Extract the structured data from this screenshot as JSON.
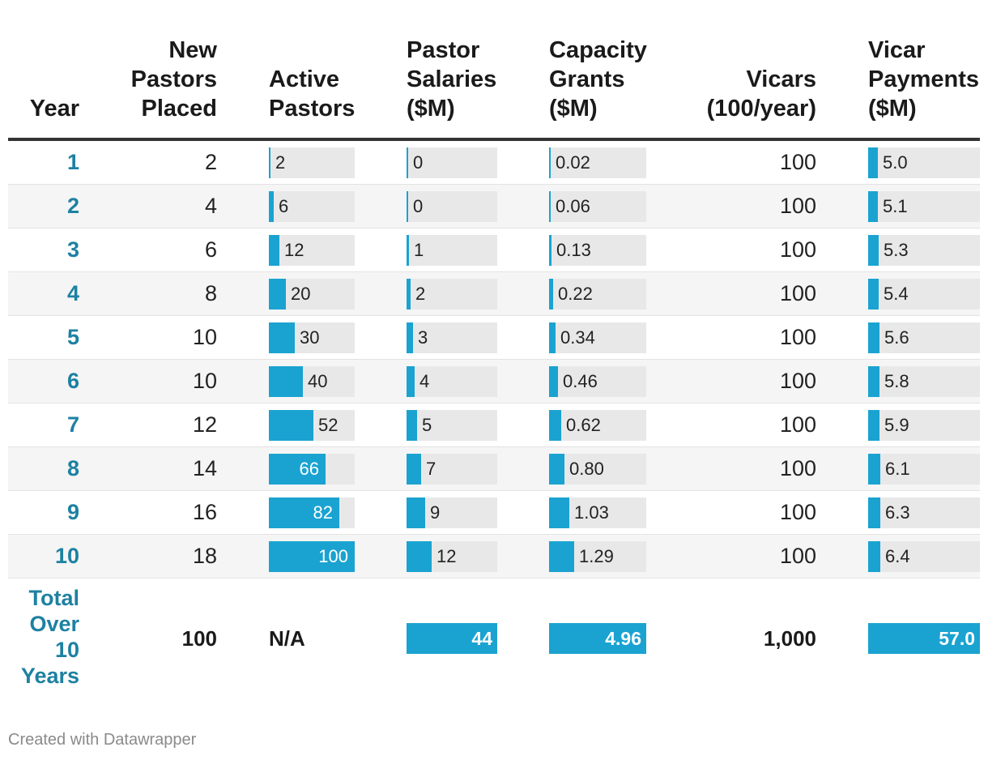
{
  "chart_data": {
    "type": "table",
    "columns": [
      {
        "key": "year",
        "label": "Year"
      },
      {
        "key": "new_pastors",
        "label": "New Pastors Placed"
      },
      {
        "key": "active_pastors",
        "label": "Active Pastors"
      },
      {
        "key": "pastor_salaries",
        "label": "Pastor Salaries ($M)"
      },
      {
        "key": "capacity_grants",
        "label": "Capacity Grants ($M)"
      },
      {
        "key": "vicars",
        "label": "Vicars (100/year)"
      },
      {
        "key": "vicar_payments",
        "label": "Vicar Payments ($M)"
      }
    ],
    "header_lines": {
      "year": [
        "Year"
      ],
      "new_pastors": [
        "New",
        "Pastors",
        "Placed"
      ],
      "active_pastors": [
        "Active",
        "Pastors"
      ],
      "pastor_salaries": [
        "Pastor",
        "Salaries",
        "($M)"
      ],
      "capacity_grants": [
        "Capacity",
        "Grants",
        "($M)"
      ],
      "vicars": [
        "Vicars",
        "(100/year)"
      ],
      "vicar_payments": [
        "Vicar",
        "Payments",
        "($M)"
      ]
    },
    "rows": [
      {
        "year": "1",
        "new_pastors": "2",
        "active_pastors": "2",
        "pastor_salaries": "0",
        "capacity_grants": "0.02",
        "vicars": "100",
        "vicar_payments": "5.0"
      },
      {
        "year": "2",
        "new_pastors": "4",
        "active_pastors": "6",
        "pastor_salaries": "0",
        "capacity_grants": "0.06",
        "vicars": "100",
        "vicar_payments": "5.1"
      },
      {
        "year": "3",
        "new_pastors": "6",
        "active_pastors": "12",
        "pastor_salaries": "1",
        "capacity_grants": "0.13",
        "vicars": "100",
        "vicar_payments": "5.3"
      },
      {
        "year": "4",
        "new_pastors": "8",
        "active_pastors": "20",
        "pastor_salaries": "2",
        "capacity_grants": "0.22",
        "vicars": "100",
        "vicar_payments": "5.4"
      },
      {
        "year": "5",
        "new_pastors": "10",
        "active_pastors": "30",
        "pastor_salaries": "3",
        "capacity_grants": "0.34",
        "vicars": "100",
        "vicar_payments": "5.6"
      },
      {
        "year": "6",
        "new_pastors": "10",
        "active_pastors": "40",
        "pastor_salaries": "4",
        "capacity_grants": "0.46",
        "vicars": "100",
        "vicar_payments": "5.8"
      },
      {
        "year": "7",
        "new_pastors": "12",
        "active_pastors": "52",
        "pastor_salaries": "5",
        "capacity_grants": "0.62",
        "vicars": "100",
        "vicar_payments": "5.9"
      },
      {
        "year": "8",
        "new_pastors": "14",
        "active_pastors": "66",
        "pastor_salaries": "7",
        "capacity_grants": "0.80",
        "vicars": "100",
        "vicar_payments": "6.1"
      },
      {
        "year": "9",
        "new_pastors": "16",
        "active_pastors": "82",
        "pastor_salaries": "9",
        "capacity_grants": "1.03",
        "vicars": "100",
        "vicar_payments": "6.3"
      },
      {
        "year": "10",
        "new_pastors": "18",
        "active_pastors": "100",
        "pastor_salaries": "12",
        "capacity_grants": "1.29",
        "vicars": "100",
        "vicar_payments": "6.4"
      }
    ],
    "total": {
      "year_lines": [
        "Total",
        "Over",
        "10",
        "Years"
      ],
      "new_pastors": "100",
      "active_pastors": "N/A",
      "pastor_salaries": "44",
      "capacity_grants": "4.96",
      "vicars": "1,000",
      "vicar_payments": "57.0"
    },
    "bar_columns": {
      "active_pastors": {
        "max": 100
      },
      "pastor_salaries": {
        "max": 44
      },
      "capacity_grants": {
        "max": 4.96
      },
      "vicar_payments": {
        "max": 57.0
      }
    }
  },
  "colors": {
    "accent": "#1aa3d1",
    "year_text": "#1d81a2",
    "bar_track": "#e8e8e8",
    "row_alt": "#f5f5f5"
  },
  "footer": {
    "credit": "Created with Datawrapper"
  }
}
